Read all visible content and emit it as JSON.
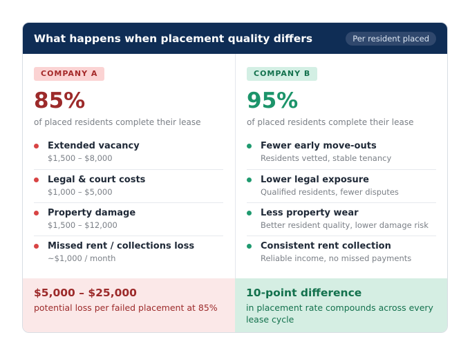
{
  "header": {
    "title": "What happens when placement quality differs",
    "pill": "Per resident placed"
  },
  "company_a": {
    "label": "COMPANY A",
    "percent": "85%",
    "percent_caption": "of placed residents complete their lease",
    "accent_color": "#9c2a2a",
    "items": [
      {
        "title": "Extended vacancy",
        "detail": "$1,500 – $8,000"
      },
      {
        "title": "Legal & court costs",
        "detail": "$1,000 – $5,000"
      },
      {
        "title": "Property damage",
        "detail": "$1,500 – $12,000"
      },
      {
        "title": "Missed rent / collections loss",
        "detail": "~$1,000 / month"
      }
    ],
    "footer": {
      "title": "$5,000 – $25,000",
      "text": "potential loss per failed placement at 85%"
    }
  },
  "company_b": {
    "label": "COMPANY B",
    "percent": "95%",
    "percent_caption": "of placed residents complete their lease",
    "accent_color": "#1c946a",
    "items": [
      {
        "title": "Fewer early move-outs",
        "detail": "Residents vetted, stable tenancy"
      },
      {
        "title": "Lower legal exposure",
        "detail": "Qualified residents, fewer disputes"
      },
      {
        "title": "Less property wear",
        "detail": "Better resident quality, lower damage risk"
      },
      {
        "title": "Consistent rent collection",
        "detail": "Reliable income, no missed payments"
      }
    ],
    "footer": {
      "title": "10-point difference",
      "text": "in placement rate compounds across every lease cycle"
    }
  }
}
